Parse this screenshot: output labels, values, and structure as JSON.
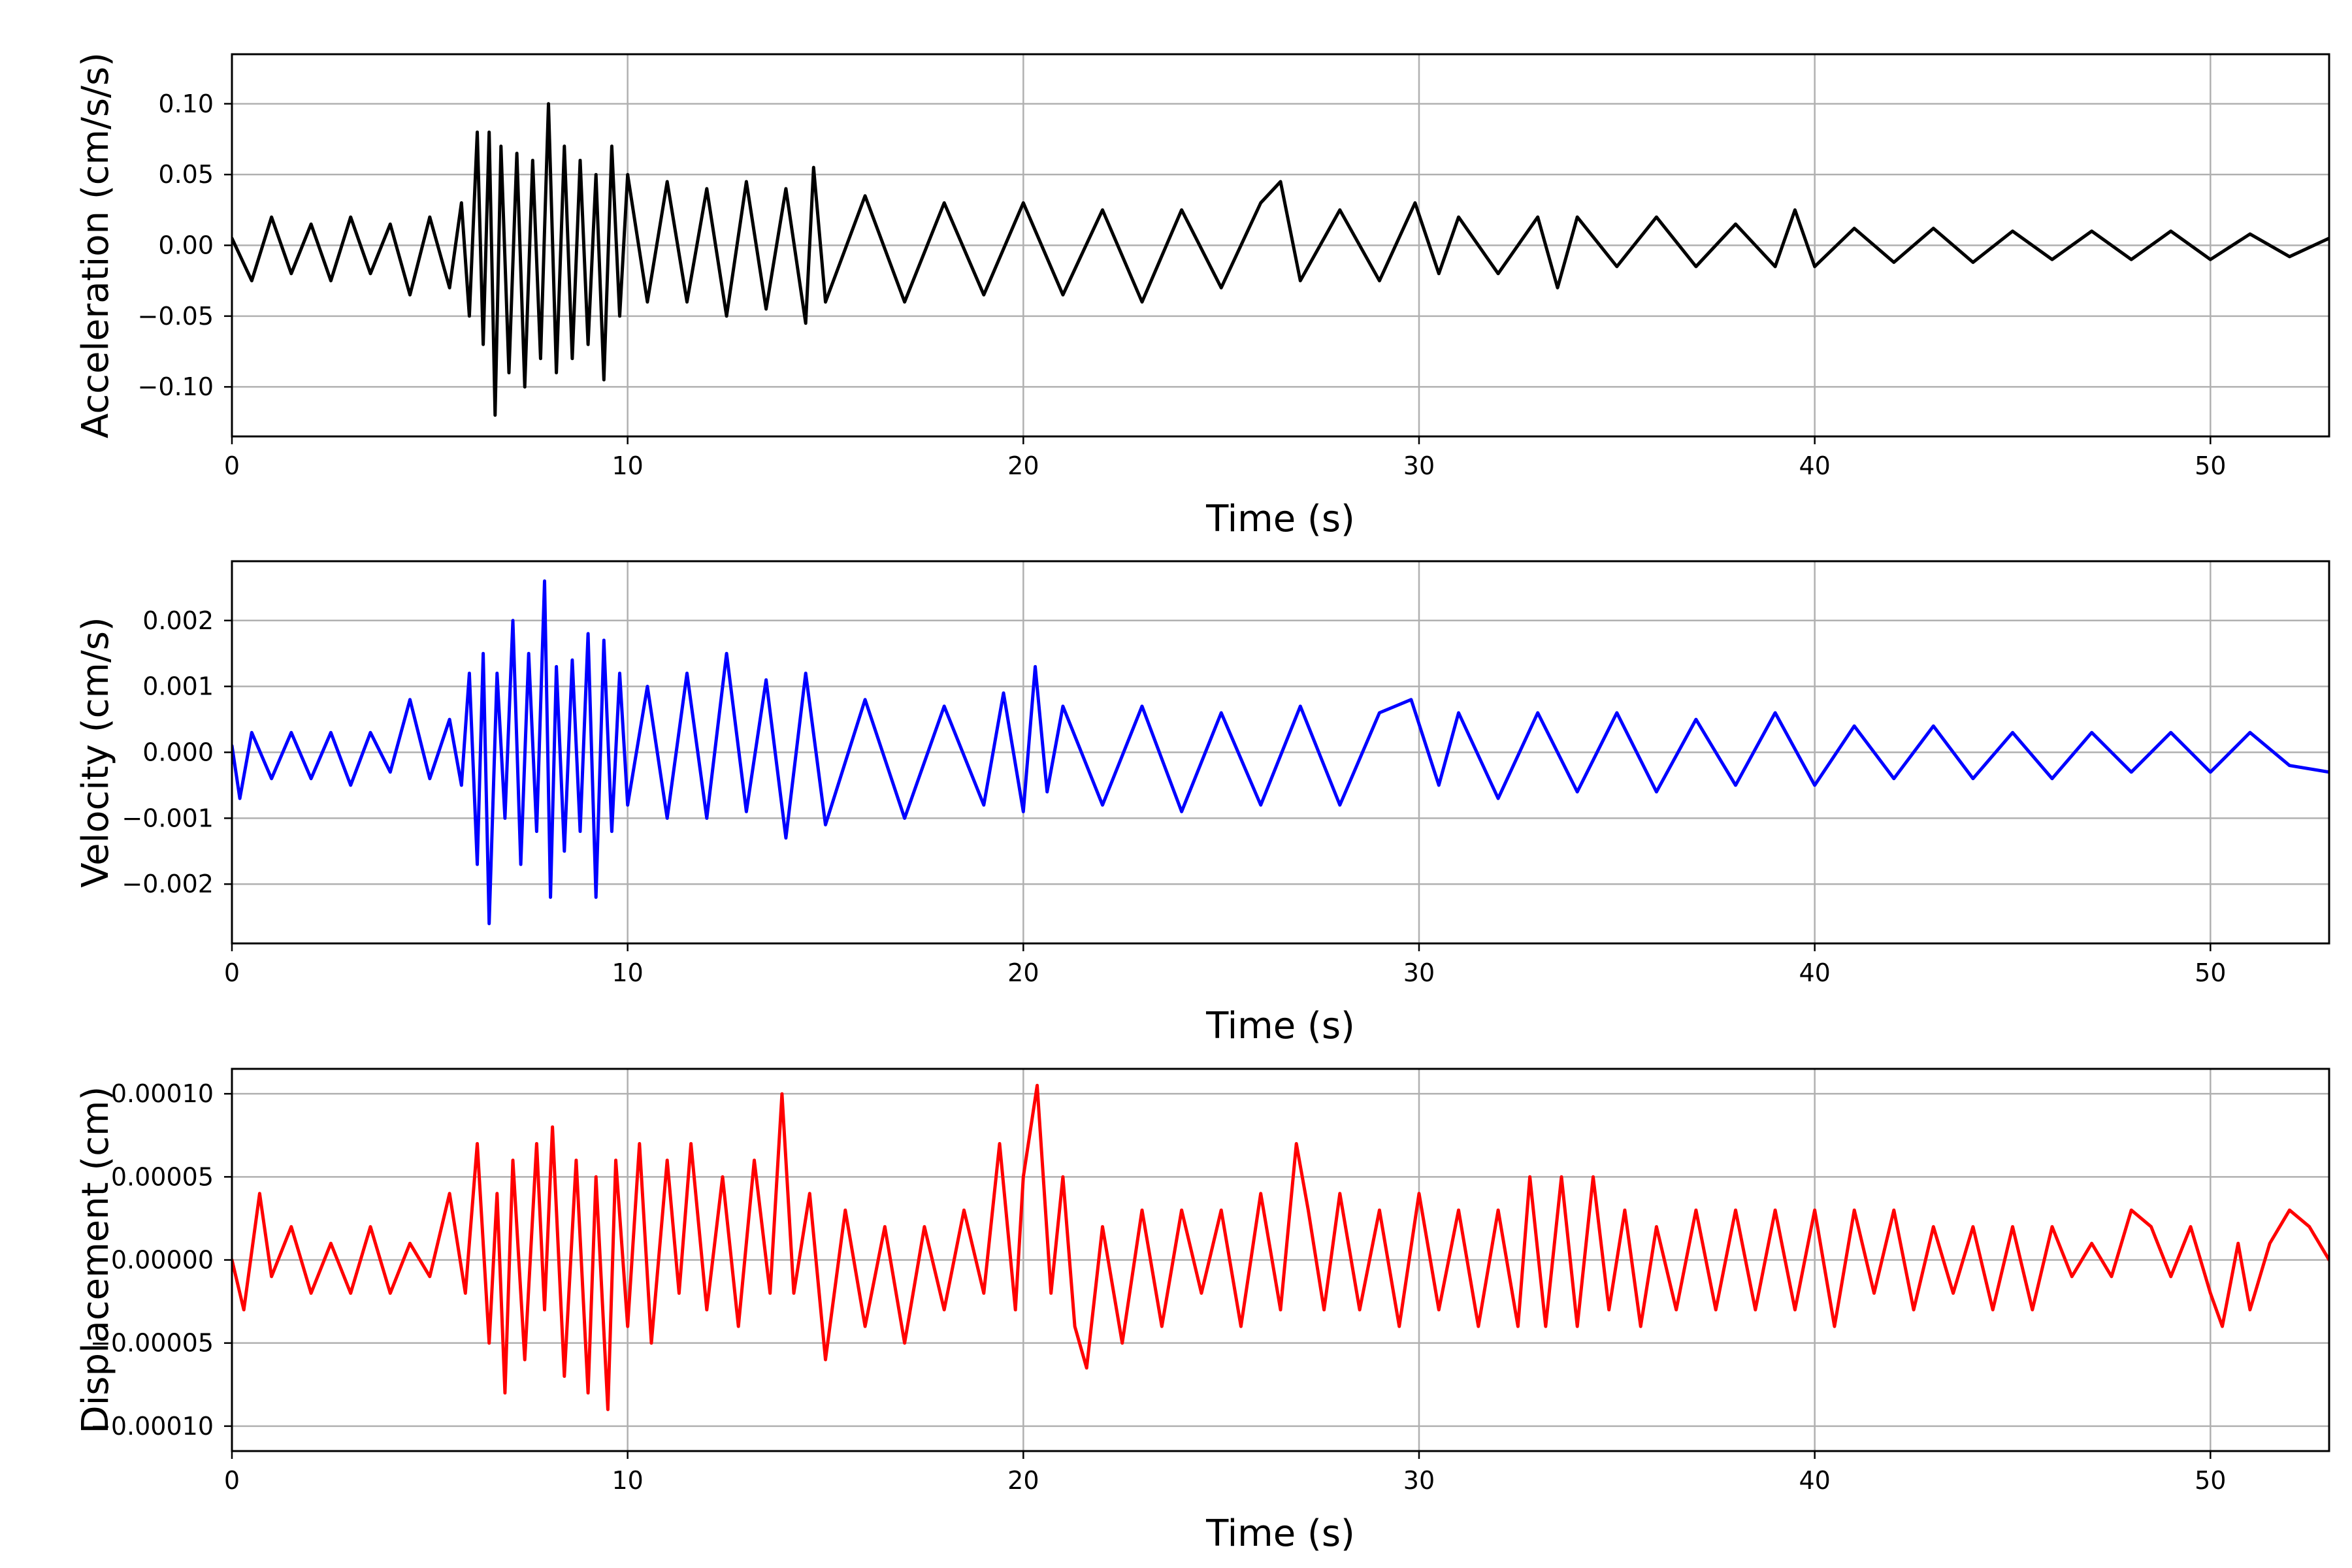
{
  "chart_data": [
    {
      "type": "line",
      "xlabel": "Time (s)",
      "ylabel": "Acceleration (cm/s/s)",
      "xlim": [
        0,
        53
      ],
      "ylim": [
        -0.135,
        0.135
      ],
      "xticks": [
        0,
        10,
        20,
        30,
        40,
        50
      ],
      "xtick_labels": [
        "0",
        "10",
        "20",
        "30",
        "40",
        "50"
      ],
      "yticks": [
        0.1,
        0.05,
        0.0,
        -0.05,
        -0.1
      ],
      "ytick_labels": [
        "0.10",
        "0.05",
        "0.00",
        "−0.05",
        "−0.10"
      ],
      "grid": true,
      "color": "#000000",
      "series": [
        {
          "x": [
            0,
            0.5,
            1,
            1.5,
            2,
            2.5,
            3,
            3.5,
            4,
            4.5,
            5,
            5.5,
            5.8,
            6.0,
            6.2,
            6.35,
            6.5,
            6.65,
            6.8,
            7.0,
            7.2,
            7.4,
            7.6,
            7.8,
            8.0,
            8.2,
            8.4,
            8.6,
            8.8,
            9.0,
            9.2,
            9.4,
            9.6,
            9.8,
            10.0,
            10.5,
            11.0,
            11.5,
            12.0,
            12.5,
            13.0,
            13.5,
            14.0,
            14.5,
            14.7,
            15.0,
            16.0,
            17.0,
            18.0,
            19.0,
            20.0,
            21.0,
            22.0,
            23.0,
            24.0,
            25.0,
            26.0,
            26.5,
            27.0,
            28.0,
            29.0,
            29.9,
            30.5,
            31.0,
            32.0,
            33.0,
            33.5,
            34.0,
            35.0,
            36.0,
            37.0,
            38.0,
            39.0,
            39.5,
            40.0,
            41.0,
            42.0,
            43.0,
            44.0,
            45.0,
            46.0,
            47.0,
            48.0,
            49.0,
            50.0,
            51.0,
            52.0,
            53.0
          ],
          "y": [
            0.005,
            -0.025,
            0.02,
            -0.02,
            0.015,
            -0.025,
            0.02,
            -0.02,
            0.015,
            -0.035,
            0.02,
            -0.03,
            0.03,
            -0.05,
            0.08,
            -0.07,
            0.08,
            -0.12,
            0.07,
            -0.09,
            0.065,
            -0.1,
            0.06,
            -0.08,
            0.1,
            -0.09,
            0.07,
            -0.08,
            0.06,
            -0.07,
            0.05,
            -0.095,
            0.07,
            -0.05,
            0.05,
            -0.04,
            0.045,
            -0.04,
            0.04,
            -0.05,
            0.045,
            -0.045,
            0.04,
            -0.055,
            0.055,
            -0.04,
            0.035,
            -0.04,
            0.03,
            -0.035,
            0.03,
            -0.035,
            0.025,
            -0.04,
            0.025,
            -0.03,
            0.03,
            0.045,
            -0.025,
            0.025,
            -0.025,
            0.03,
            -0.02,
            0.02,
            -0.02,
            0.02,
            -0.03,
            0.02,
            -0.015,
            0.02,
            -0.015,
            0.015,
            -0.015,
            0.025,
            -0.015,
            0.012,
            -0.012,
            0.012,
            -0.012,
            0.01,
            -0.01,
            0.01,
            -0.01,
            0.01,
            -0.01,
            0.008,
            -0.008,
            0.005
          ]
        }
      ]
    },
    {
      "type": "line",
      "xlabel": "Time (s)",
      "ylabel": "Velocity (cm/s)",
      "xlim": [
        0,
        53
      ],
      "ylim": [
        -0.0029,
        0.0029
      ],
      "xticks": [
        0,
        10,
        20,
        30,
        40,
        50
      ],
      "xtick_labels": [
        "0",
        "10",
        "20",
        "30",
        "40",
        "50"
      ],
      "yticks": [
        0.002,
        0.001,
        0.0,
        -0.001,
        -0.002
      ],
      "ytick_labels": [
        "0.002",
        "0.001",
        "0.000",
        "−0.001",
        "−0.002"
      ],
      "grid": true,
      "color": "#0000ff",
      "series": [
        {
          "x": [
            0,
            0.2,
            0.5,
            1,
            1.5,
            2,
            2.5,
            3,
            3.5,
            4,
            4.5,
            5,
            5.5,
            5.8,
            6.0,
            6.2,
            6.35,
            6.5,
            6.7,
            6.9,
            7.1,
            7.3,
            7.5,
            7.7,
            7.9,
            8.05,
            8.2,
            8.4,
            8.6,
            8.8,
            9.0,
            9.2,
            9.4,
            9.6,
            9.8,
            10.0,
            10.5,
            11.0,
            11.5,
            12.0,
            12.5,
            13.0,
            13.5,
            14.0,
            14.5,
            15.0,
            16.0,
            17.0,
            18.0,
            19.0,
            19.5,
            20.0,
            20.3,
            20.6,
            21.0,
            22.0,
            23.0,
            24.0,
            25.0,
            26.0,
            27.0,
            28.0,
            29.0,
            29.8,
            30.5,
            31.0,
            32.0,
            33.0,
            34.0,
            35.0,
            36.0,
            37.0,
            38.0,
            39.0,
            40.0,
            41.0,
            42.0,
            43.0,
            44.0,
            45.0,
            46.0,
            47.0,
            48.0,
            49.0,
            50.0,
            51.0,
            52.0,
            53.0
          ],
          "y": [
            0.0001,
            -0.0007,
            0.0003,
            -0.0004,
            0.0003,
            -0.0004,
            0.0003,
            -0.0005,
            0.0003,
            -0.0003,
            0.0008,
            -0.0004,
            0.0005,
            -0.0005,
            0.0012,
            -0.0017,
            0.0015,
            -0.0026,
            0.0012,
            -0.001,
            0.002,
            -0.0017,
            0.0015,
            -0.0012,
            0.0026,
            -0.0022,
            0.0013,
            -0.0015,
            0.0014,
            -0.0012,
            0.0018,
            -0.0022,
            0.0017,
            -0.0012,
            0.0012,
            -0.0008,
            0.001,
            -0.001,
            0.0012,
            -0.001,
            0.0015,
            -0.0009,
            0.0011,
            -0.0013,
            0.0012,
            -0.0011,
            0.0008,
            -0.001,
            0.0007,
            -0.0008,
            0.0009,
            -0.0009,
            0.0013,
            -0.0006,
            0.0007,
            -0.0008,
            0.0007,
            -0.0009,
            0.0006,
            -0.0008,
            0.0007,
            -0.0008,
            0.0006,
            0.0008,
            -0.0005,
            0.0006,
            -0.0007,
            0.0006,
            -0.0006,
            0.0006,
            -0.0006,
            0.0005,
            -0.0005,
            0.0006,
            -0.0005,
            0.0004,
            -0.0004,
            0.0004,
            -0.0004,
            0.0003,
            -0.0004,
            0.0003,
            -0.0003,
            0.0003,
            -0.0003,
            0.0003,
            -0.0002,
            -0.0003
          ]
        }
      ]
    },
    {
      "type": "line",
      "xlabel": "Time (s)",
      "ylabel": "Displacement (cm)",
      "xlim": [
        0,
        53
      ],
      "ylim": [
        -0.000115,
        0.000115
      ],
      "xticks": [
        0,
        10,
        20,
        30,
        40,
        50
      ],
      "xtick_labels": [
        "0",
        "10",
        "20",
        "30",
        "40",
        "50"
      ],
      "yticks": [
        0.0001,
        5e-05,
        0.0,
        -5e-05,
        -0.0001
      ],
      "ytick_labels": [
        "0.00010",
        "0.00005",
        "0.00000",
        "−0.00005",
        "−0.00010"
      ],
      "grid": true,
      "color": "#ff0000",
      "series": [
        {
          "x": [
            0,
            0.3,
            0.7,
            1.0,
            1.5,
            2.0,
            2.5,
            3.0,
            3.5,
            4.0,
            4.5,
            5.0,
            5.5,
            5.9,
            6.2,
            6.5,
            6.7,
            6.9,
            7.1,
            7.4,
            7.7,
            7.9,
            8.1,
            8.4,
            8.7,
            9.0,
            9.2,
            9.5,
            9.7,
            10.0,
            10.3,
            10.6,
            11.0,
            11.3,
            11.6,
            12.0,
            12.4,
            12.8,
            13.2,
            13.6,
            13.9,
            14.2,
            14.6,
            15.0,
            15.5,
            16.0,
            16.5,
            17.0,
            17.5,
            18.0,
            18.5,
            19.0,
            19.4,
            19.8,
            20.0,
            20.35,
            20.7,
            21.0,
            21.3,
            21.6,
            22.0,
            22.5,
            23.0,
            23.5,
            24.0,
            24.5,
            25.0,
            25.5,
            26.0,
            26.5,
            26.9,
            27.2,
            27.6,
            28.0,
            28.5,
            29.0,
            29.5,
            30.0,
            30.5,
            31.0,
            31.5,
            32.0,
            32.5,
            32.8,
            33.2,
            33.6,
            34.0,
            34.4,
            34.8,
            35.2,
            35.6,
            36.0,
            36.5,
            37.0,
            37.5,
            38.0,
            38.5,
            39.0,
            39.5,
            40.0,
            40.5,
            41.0,
            41.5,
            42.0,
            42.5,
            43.0,
            43.5,
            44.0,
            44.5,
            45.0,
            45.5,
            46.0,
            46.5,
            47.0,
            47.5,
            48.0,
            48.5,
            49.0,
            49.5,
            50.0,
            50.3,
            50.7,
            51.0,
            51.5,
            52.0,
            52.5,
            53.0
          ],
          "y": [
            0.0,
            -3e-05,
            4e-05,
            -1e-05,
            2e-05,
            -2e-05,
            1e-05,
            -2e-05,
            2e-05,
            -2e-05,
            1e-05,
            -1e-05,
            4e-05,
            -2e-05,
            7e-05,
            -5e-05,
            4e-05,
            -8e-05,
            6e-05,
            -6e-05,
            7e-05,
            -3e-05,
            8e-05,
            -7e-05,
            6e-05,
            -8e-05,
            5e-05,
            -9e-05,
            6e-05,
            -4e-05,
            7e-05,
            -5e-05,
            6e-05,
            -2e-05,
            7e-05,
            -3e-05,
            5e-05,
            -4e-05,
            6e-05,
            -2e-05,
            0.0001,
            -2e-05,
            4e-05,
            -6e-05,
            3e-05,
            -4e-05,
            2e-05,
            -5e-05,
            2e-05,
            -3e-05,
            3e-05,
            -2e-05,
            7e-05,
            -3e-05,
            5e-05,
            0.000105,
            -2e-05,
            5e-05,
            -4e-05,
            -6.5e-05,
            2e-05,
            -5e-05,
            3e-05,
            -4e-05,
            3e-05,
            -2e-05,
            3e-05,
            -4e-05,
            4e-05,
            -3e-05,
            7e-05,
            3e-05,
            -3e-05,
            4e-05,
            -3e-05,
            3e-05,
            -4e-05,
            4e-05,
            -3e-05,
            3e-05,
            -4e-05,
            3e-05,
            -4e-05,
            5e-05,
            -4e-05,
            5e-05,
            -4e-05,
            5e-05,
            -3e-05,
            3e-05,
            -4e-05,
            2e-05,
            -3e-05,
            3e-05,
            -3e-05,
            3e-05,
            -3e-05,
            3e-05,
            -3e-05,
            3e-05,
            -4e-05,
            3e-05,
            -2e-05,
            3e-05,
            -3e-05,
            2e-05,
            -2e-05,
            2e-05,
            -3e-05,
            2e-05,
            -3e-05,
            2e-05,
            -1e-05,
            1e-05,
            -1e-05,
            3e-05,
            2e-05,
            -1e-05,
            2e-05,
            -2e-05,
            -4e-05,
            1e-05,
            -3e-05,
            1e-05,
            3e-05,
            2e-05,
            0.0
          ]
        }
      ]
    }
  ]
}
